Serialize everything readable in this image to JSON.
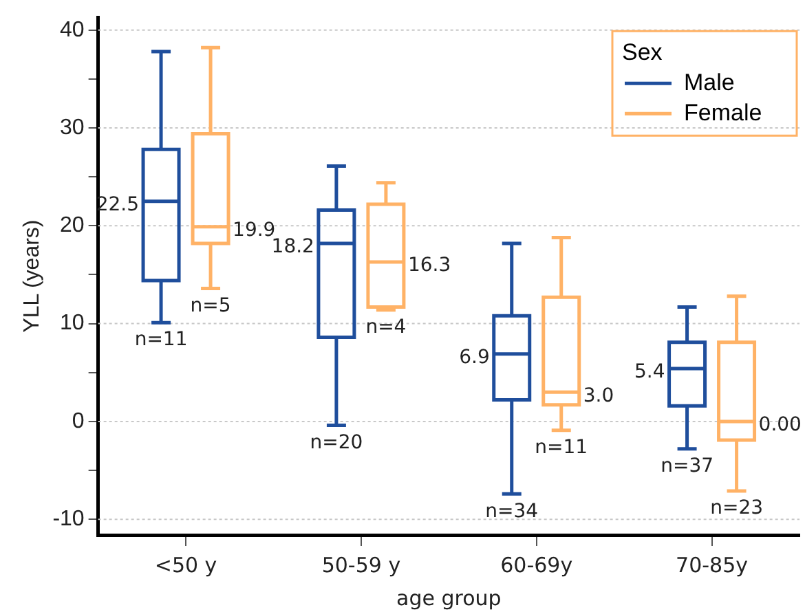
{
  "chart_data": {
    "type": "box",
    "xlabel": "age group",
    "ylabel": "YLL (years)",
    "legend_title": "Sex",
    "legend": "top right",
    "grid": "y",
    "categories": [
      "<50 y",
      "50-59 y",
      "60-69y",
      "70-85y"
    ],
    "ylim": [
      -11.6,
      41.3
    ],
    "yticks": [
      -10,
      {
        "value": -5,
        "label": null
      },
      0,
      {
        "value": 5,
        "label": null
      },
      10,
      {
        "value": 15,
        "label": null
      },
      20,
      {
        "value": 25,
        "label": null
      },
      30,
      {
        "value": 35,
        "label": null
      },
      40
    ],
    "series": [
      {
        "name": "Male",
        "color": "#1f4e9c",
        "boxes": [
          {
            "low": 10.1,
            "q1": 14.4,
            "median": 22.5,
            "q3": 27.8,
            "high": 37.8
          },
          {
            "low": -0.4,
            "q1": 8.6,
            "median": 18.2,
            "q3": 21.6,
            "high": 26.1
          },
          {
            "low": -7.4,
            "q1": 2.2,
            "median": 6.9,
            "q3": 10.8,
            "high": 18.2
          },
          {
            "low": -2.8,
            "q1": 1.6,
            "median": 5.4,
            "q3": 8.1,
            "high": 11.7
          }
        ]
      },
      {
        "name": "Female",
        "color": "#ffb266",
        "boxes": [
          {
            "low": 13.6,
            "q1": 18.2,
            "median": 19.9,
            "q3": 29.4,
            "high": 38.2
          },
          {
            "low": 11.4,
            "q1": 11.7,
            "median": 16.3,
            "q3": 22.2,
            "high": 24.4
          },
          {
            "low": -0.9,
            "q1": 1.7,
            "median": 3.0,
            "q3": 12.7,
            "high": 18.8
          },
          {
            "low": -7.1,
            "q1": -1.9,
            "median": 0.0,
            "q3": 8.1,
            "high": 12.8
          }
        ]
      }
    ],
    "annotations": [
      {
        "text": "22.5",
        "x": "<50 y",
        "y": 22.5
      },
      "n=11",
      {
        "text": "19.9",
        "x": "<50 y",
        "y": 19.9
      },
      "n=5",
      {
        "text": "18.2",
        "x": "50-59 y",
        "y": 18.2
      },
      "n=20",
      {
        "text": "16.3",
        "x": "50-59 y",
        "y": 16.3
      },
      "n=4",
      {
        "text": "6.9",
        "x": "60-69y",
        "y": 6.9
      },
      "n=34",
      {
        "text": "3.0",
        "x": "60-69y",
        "y": 3.0
      },
      "n=11",
      {
        "text": "5.4",
        "x": "70-85y",
        "y": 5.4
      },
      "n=37",
      {
        "text": "0.00",
        "x": "70-85y",
        "y": 0.0
      },
      "n=23"
    ]
  }
}
